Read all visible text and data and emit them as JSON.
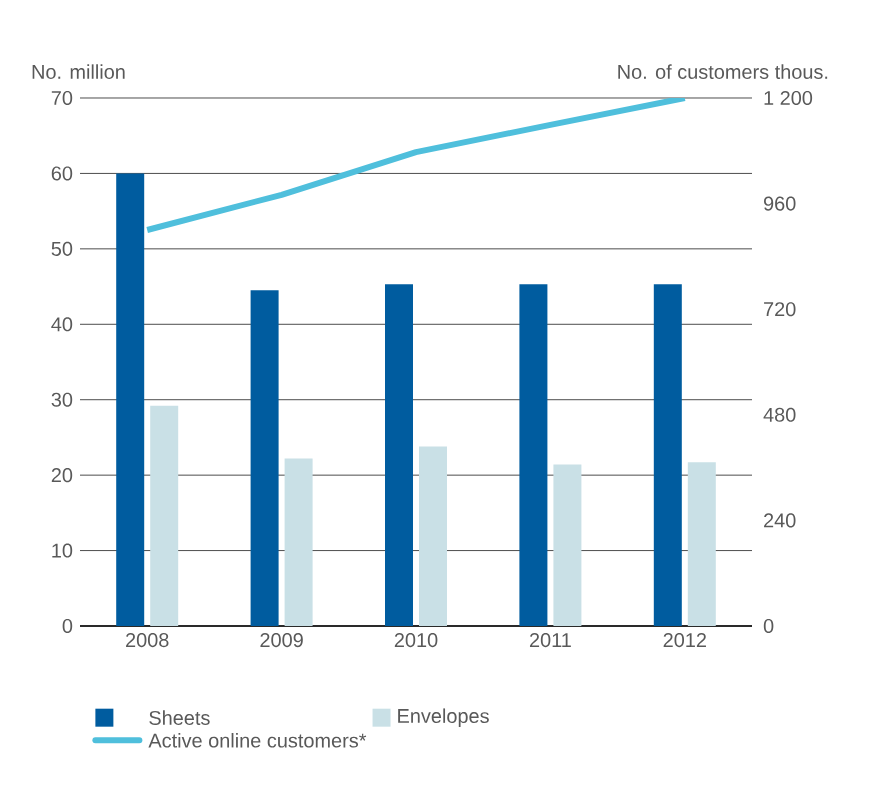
{
  "chart_data": {
    "type": "bar",
    "ylabel": "No. million",
    "y2label": "No. of customers thous.",
    "categories": [
      "2008",
      "2009",
      "2010",
      "2011",
      "2012"
    ],
    "series": [
      {
        "name": "Sheets",
        "color": "#005c9f",
        "values": [
          60.0,
          44.5,
          45.3,
          45.3,
          45.3
        ]
      },
      {
        "name": "Envelopes",
        "color": "#c9e0e6",
        "values": [
          29.2,
          22.2,
          23.8,
          21.4,
          21.7
        ]
      },
      {
        "name": "Active online customers*",
        "type": "line",
        "axis": "y2",
        "color": "#4fbfdc",
        "values": [
          900,
          980,
          1077,
          1139,
          1200
        ]
      }
    ],
    "ylim": [
      0,
      70
    ],
    "yticks": [
      0,
      10,
      20,
      30,
      40,
      50,
      60,
      70
    ],
    "y2lim": [
      0,
      1200
    ],
    "y2ticks": [
      0,
      240,
      480,
      720,
      960,
      {
        "value": 1200,
        "label": "1 200"
      }
    ],
    "grid": "y",
    "legend": "bottom"
  }
}
